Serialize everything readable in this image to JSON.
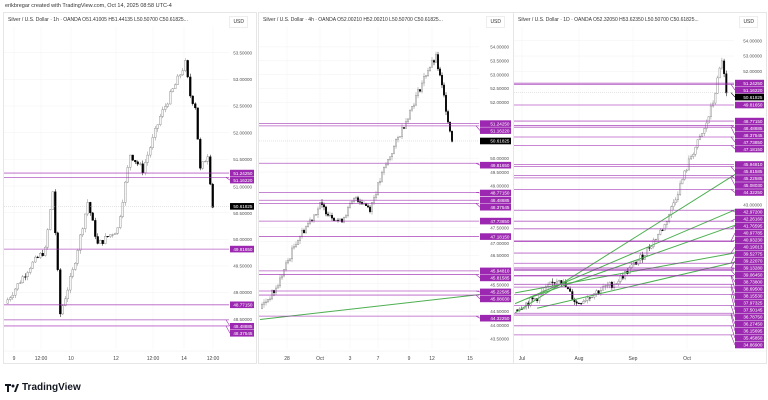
{
  "credit": "erikbregar created with TradingView.com, Oct 14, 2025 08:58 UTC-4",
  "brand": "TradingView",
  "colors": {
    "level": "#9c27b0",
    "trend": "#4caf50",
    "up": "#ffffff",
    "down": "#000000",
    "current": "#000000"
  },
  "chart_data": [
    {
      "type": "candlestick",
      "title": "Silver / U.S. Dollar · 1h · OANDA  O51.41005  H51.44135  L50.50700  C50.61825...",
      "currency": "USD",
      "ylim": [
        48.13,
        53.87
      ],
      "yticks": [
        "53.50000",
        "53.00000",
        "52.50000",
        "52.00000",
        "51.50000",
        "51.00000",
        "50.50000",
        "50.00000",
        "49.50000",
        "49.00000",
        "48.50000"
      ],
      "xticks": [
        "9",
        "12:00",
        "10",
        "12",
        "12:00",
        "14",
        "12:00"
      ],
      "bars": 90,
      "price_path": [
        [
          0,
          48.8
        ],
        [
          10,
          49.5
        ],
        [
          16,
          49.8
        ],
        [
          19,
          50.9
        ],
        [
          22,
          48.6
        ],
        [
          27,
          49.4
        ],
        [
          33,
          50.7
        ],
        [
          37,
          49.9
        ],
        [
          45,
          50.2
        ],
        [
          50,
          51.6
        ],
        [
          55,
          51.3
        ],
        [
          62,
          52.3
        ],
        [
          72,
          53.3
        ],
        [
          74,
          52.7
        ],
        [
          76,
          52.5
        ],
        [
          78,
          51.3
        ],
        [
          81,
          51.6
        ],
        [
          83,
          50.6
        ]
      ],
      "current": "50.61825",
      "levels": [
        "51.24250",
        "51.16220",
        "49.81650",
        "48.77150",
        "48.48885",
        "48.37545"
      ],
      "trendlines": []
    },
    {
      "type": "candlestick",
      "title": "Silver / U.S. Dollar · 4h · OANDA  O52.00210  H52.00210  L50.50700  C50.61825...",
      "currency": "USD",
      "ylim": [
        43.5,
        54.5
      ],
      "yticks": [
        "54.00000",
        "53.50000",
        "53.00000",
        "52.50000",
        "52.00000",
        "50.00000",
        "49.50000",
        "49.00000",
        "47.50000",
        "47.00000",
        "46.50000",
        "45.50000",
        "44.50000",
        "44.00000",
        "43.50000"
      ],
      "xticks": [
        "28",
        "Oct",
        "3",
        "7",
        "9",
        "12",
        "15"
      ],
      "bars": 110,
      "price_path": [
        [
          0,
          44.6
        ],
        [
          8,
          45.3
        ],
        [
          18,
          47.0
        ],
        [
          30,
          48.3
        ],
        [
          40,
          47.7
        ],
        [
          48,
          48.6
        ],
        [
          55,
          48.2
        ],
        [
          62,
          49.6
        ],
        [
          72,
          51.2
        ],
        [
          84,
          53.2
        ],
        [
          88,
          53.6
        ],
        [
          92,
          52.2
        ],
        [
          96,
          50.6
        ]
      ],
      "current": "50.61825",
      "levels": [
        "51.24250",
        "51.16220",
        "49.81650",
        "48.77150",
        "48.48885",
        "48.37545",
        "47.73850",
        "47.18150",
        "45.94810",
        "45.81585",
        "45.22585",
        "45.08030",
        "44.32250"
      ],
      "trendlines": [
        [
          0,
          44.2,
          110,
          45.1
        ]
      ]
    },
    {
      "type": "candlestick",
      "title": "Silver / U.S. Dollar · 1D · OANDA  O52.32050  H53.62350  L50.50700  C50.61825...",
      "currency": "USD",
      "ylim": [
        34.6,
        54.5
      ],
      "yticks": [
        "54.00000",
        "53.00000",
        "52.00000",
        "43.00000"
      ],
      "xticks": [
        "Jul",
        "Aug",
        "Sep",
        "Oct"
      ],
      "bars": 100,
      "price_path": [
        [
          0,
          36.5
        ],
        [
          10,
          37.3
        ],
        [
          20,
          38.6
        ],
        [
          28,
          36.9
        ],
        [
          36,
          37.6
        ],
        [
          46,
          38.3
        ],
        [
          58,
          40.0
        ],
        [
          68,
          42.0
        ],
        [
          74,
          44.2
        ],
        [
          80,
          46.5
        ],
        [
          86,
          48.2
        ],
        [
          90,
          50.0
        ],
        [
          94,
          52.8
        ],
        [
          96,
          50.6
        ]
      ],
      "current": "50.61825",
      "levels": [
        "51.24250",
        "51.16220",
        "49.81650",
        "48.77150",
        "48.48885",
        "48.37545",
        "47.73850",
        "47.18150",
        "45.94810",
        "45.81585",
        "45.22585",
        "45.08030",
        "44.32250",
        "42.97200",
        "42.26160",
        "41.76595",
        "40.97785",
        "40.93230",
        "40.19013",
        "39.52775",
        "39.22070",
        "39.13280",
        "39.06450",
        "38.73800",
        "38.69500",
        "38.15530",
        "37.97325",
        "37.50145",
        "36.78750",
        "36.27450",
        "36.15695",
        "35.45850",
        "34.86900"
      ],
      "trendlines": [
        [
          0,
          36.3,
          100,
          45.3
        ],
        [
          0,
          36.9,
          100,
          43.0
        ],
        [
          5,
          37.2,
          100,
          42.0
        ],
        [
          0,
          37.6,
          100,
          40.2
        ],
        [
          10,
          36.6,
          100,
          39.6
        ]
      ]
    }
  ]
}
